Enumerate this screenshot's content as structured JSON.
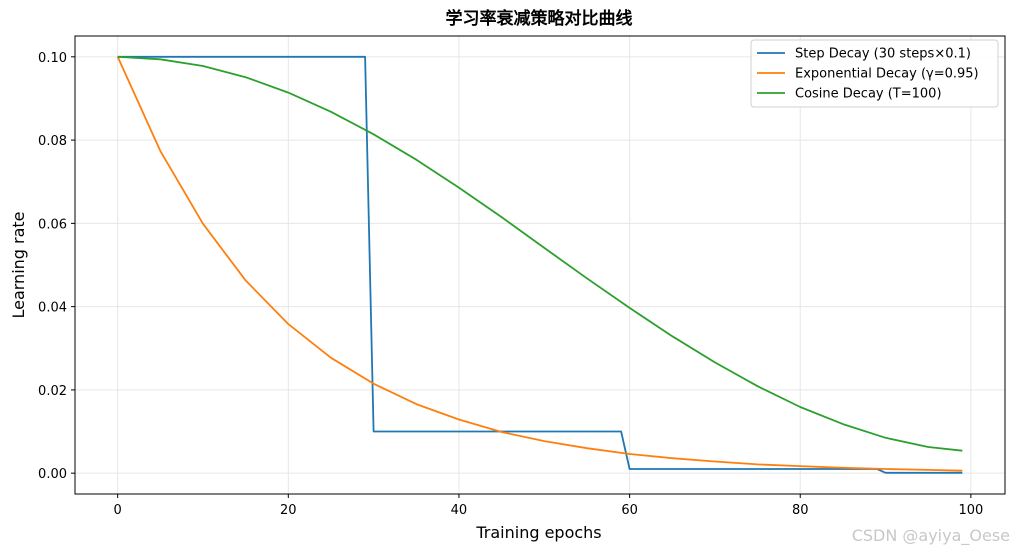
{
  "chart_data": {
    "type": "line",
    "title": "学习率衰减策略对比曲线",
    "xlabel": "Training epochs",
    "ylabel": "Learning rate",
    "xlim": [
      -5,
      104
    ],
    "ylim": [
      -0.005,
      0.105
    ],
    "xticks": [
      0,
      20,
      40,
      60,
      80,
      100
    ],
    "xtick_labels": [
      "0",
      "20",
      "40",
      "60",
      "80",
      "100"
    ],
    "yticks": [
      0.0,
      0.02,
      0.04,
      0.06,
      0.08,
      0.1
    ],
    "ytick_labels": [
      "0.00",
      "0.02",
      "0.04",
      "0.06",
      "0.08",
      "0.10"
    ],
    "grid": true,
    "legend_position": "top-right",
    "series": [
      {
        "name": "Step Decay (30 steps×0.1)",
        "color": "#1f77b4",
        "x": [
          0,
          29,
          30,
          59,
          60,
          89,
          90,
          99
        ],
        "y": [
          0.1,
          0.1,
          0.01,
          0.01,
          0.001,
          0.001,
          0.0001,
          0.0001
        ]
      },
      {
        "name": "Exponential Decay (γ=0.95)",
        "color": "#ff7f0e",
        "x": [
          0,
          5,
          10,
          15,
          20,
          25,
          30,
          35,
          40,
          45,
          50,
          55,
          60,
          65,
          70,
          75,
          80,
          85,
          90,
          95,
          99
        ],
        "y": [
          0.1,
          0.0774,
          0.0599,
          0.0463,
          0.0358,
          0.0277,
          0.0215,
          0.0166,
          0.0129,
          0.0099,
          0.0077,
          0.006,
          0.0046,
          0.0036,
          0.0028,
          0.0021,
          0.0017,
          0.0013,
          0.001,
          0.0008,
          0.0006
        ]
      },
      {
        "name": "Cosine Decay (T=100)",
        "color": "#2ca02c",
        "x": [
          0,
          5,
          10,
          15,
          20,
          25,
          30,
          35,
          40,
          45,
          50,
          55,
          60,
          65,
          70,
          75,
          80,
          85,
          90,
          95,
          99
        ],
        "y": [
          0.1,
          0.0994,
          0.0978,
          0.0951,
          0.0914,
          0.0868,
          0.0814,
          0.0753,
          0.0686,
          0.0615,
          0.0541,
          0.0468,
          0.0397,
          0.0329,
          0.0266,
          0.0209,
          0.0159,
          0.0118,
          0.0085,
          0.0063,
          0.0054
        ]
      }
    ]
  },
  "watermark": "CSDN @ayiya_Oese"
}
